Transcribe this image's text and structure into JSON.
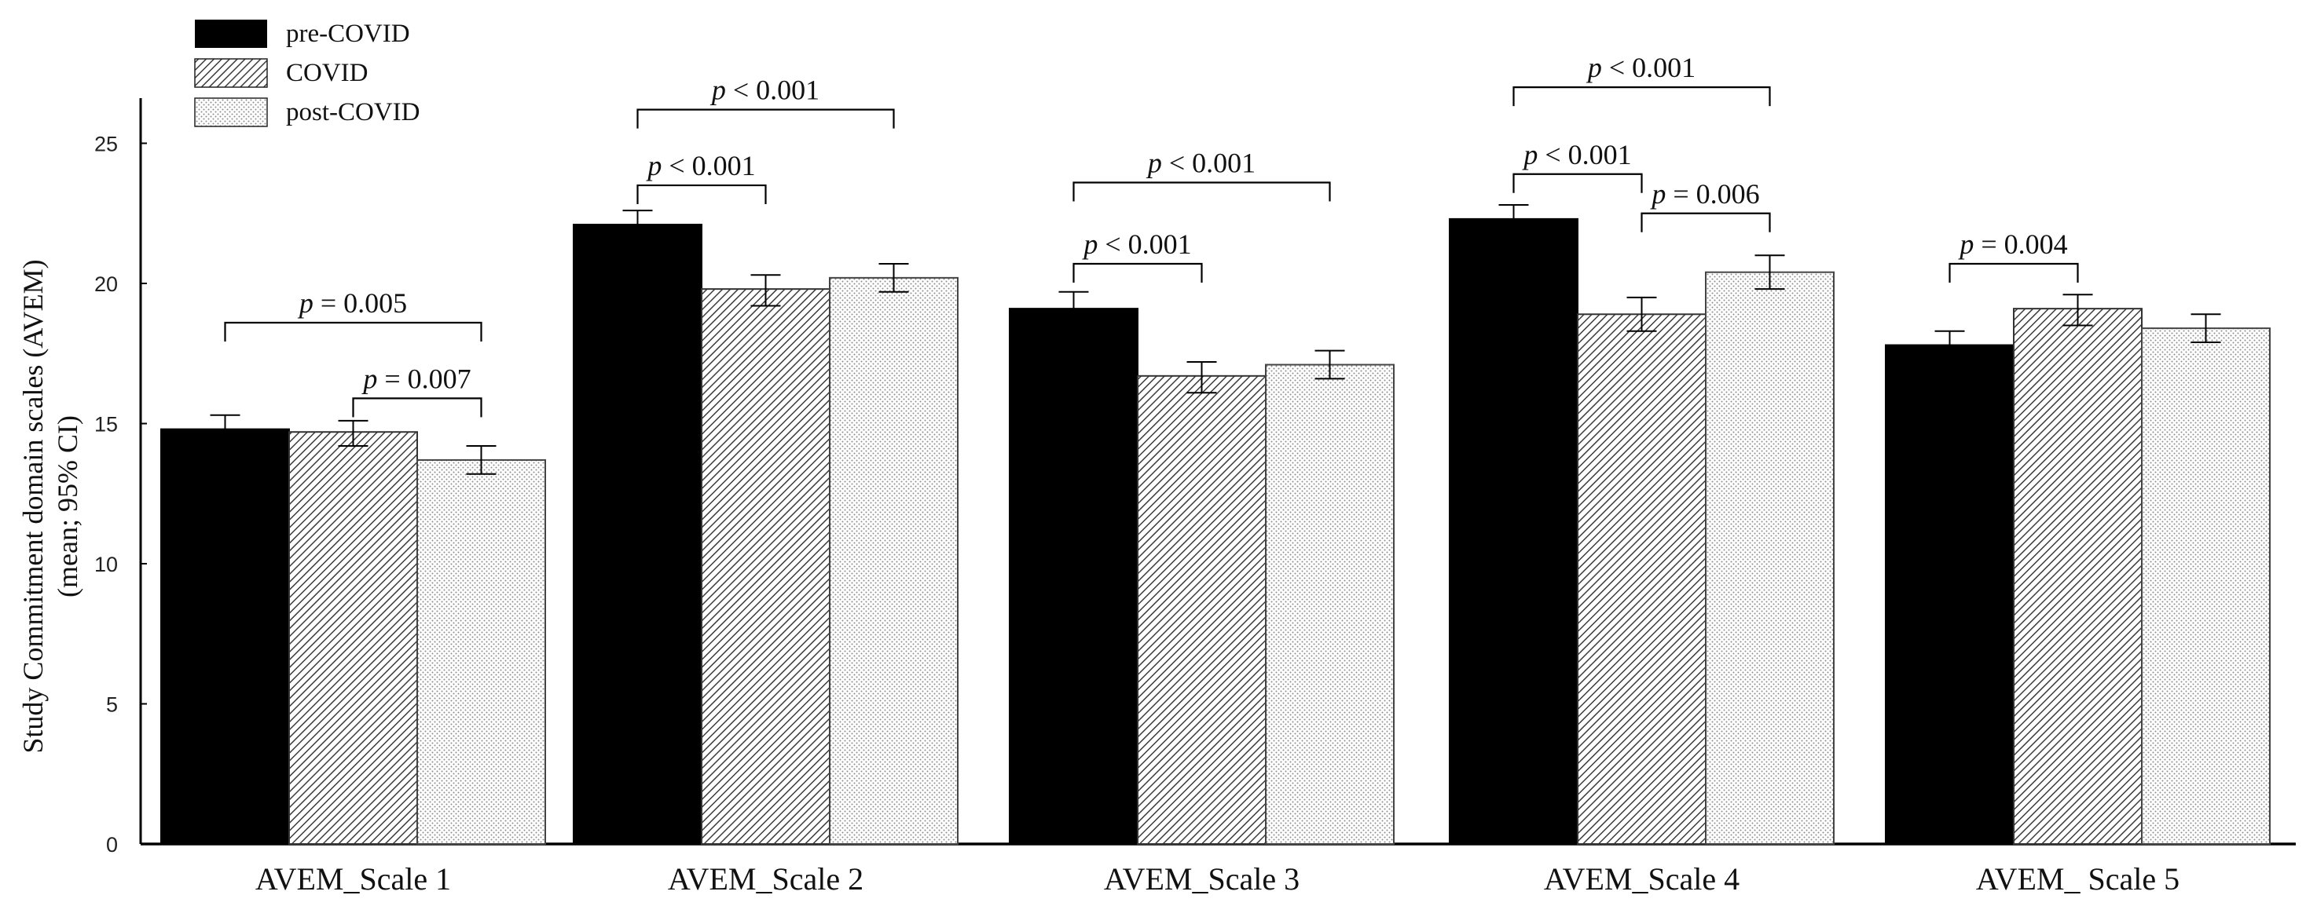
{
  "chart_data": {
    "type": "bar",
    "title": "",
    "xlabel": "",
    "ylabel": [
      "Study Commitment domain scales (AVEM)",
      "(mean; 95% CI)"
    ],
    "ylim": [
      0,
      26.5
    ],
    "yticks": [
      0,
      5,
      10,
      15,
      20,
      25
    ],
    "categories": [
      "AVEM_Scale 1",
      "AVEM_Scale 2",
      "AVEM_Scale 3",
      "AVEM_Scale 4",
      "AVEM_ Scale 5"
    ],
    "series": [
      {
        "name": "pre-COVID",
        "pattern": "solid",
        "color": "#000000",
        "values": [
          14.8,
          22.1,
          19.1,
          22.3,
          17.8
        ],
        "ci_low": [
          14.3,
          21.6,
          18.6,
          21.8,
          17.3
        ],
        "ci_high": [
          15.3,
          22.6,
          19.7,
          22.8,
          18.3
        ]
      },
      {
        "name": "COVID",
        "pattern": "diagonal-hatch",
        "color": "#555555",
        "values": [
          14.7,
          19.8,
          16.7,
          18.9,
          19.1
        ],
        "ci_low": [
          14.2,
          19.2,
          16.1,
          18.3,
          18.5
        ],
        "ci_high": [
          15.1,
          20.3,
          17.2,
          19.5,
          19.6
        ]
      },
      {
        "name": "post-COVID",
        "pattern": "dotted",
        "color": "#999999",
        "values": [
          13.7,
          20.2,
          17.1,
          20.4,
          18.4
        ],
        "ci_low": [
          13.2,
          19.7,
          16.6,
          19.8,
          17.9
        ],
        "ci_high": [
          14.2,
          20.7,
          17.6,
          21.0,
          18.9
        ]
      }
    ],
    "legend_position": "top-left",
    "annotations": [
      {
        "category": 0,
        "from": 0,
        "to": 2,
        "p": "p",
        "text": "= 0.005",
        "y": 18.6
      },
      {
        "category": 0,
        "from": 1,
        "to": 2,
        "p": "p",
        "text": "= 0.007",
        "y": 15.9
      },
      {
        "category": 1,
        "from": 0,
        "to": 1,
        "p": "p",
        "text": "< 0.001",
        "y": 23.5
      },
      {
        "category": 1,
        "from": 0,
        "to": 2,
        "p": "p",
        "text": "< 0.001",
        "y": 26.2
      },
      {
        "category": 2,
        "from": 0,
        "to": 1,
        "p": "p",
        "text": "< 0.001",
        "y": 20.7
      },
      {
        "category": 2,
        "from": 0,
        "to": 2,
        "p": "p",
        "text": "< 0.001",
        "y": 23.6
      },
      {
        "category": 3,
        "from": 0,
        "to": 1,
        "p": "p",
        "text": "< 0.001",
        "y": 23.9
      },
      {
        "category": 3,
        "from": 0,
        "to": 2,
        "p": "p",
        "text": "< 0.001",
        "y": 27.0
      },
      {
        "category": 3,
        "from": 1,
        "to": 2,
        "p": "p",
        "text": "= 0.006",
        "y": 22.5
      },
      {
        "category": 4,
        "from": 0,
        "to": 1,
        "p": "p",
        "text": "= 0.004",
        "y": 20.7
      }
    ]
  }
}
